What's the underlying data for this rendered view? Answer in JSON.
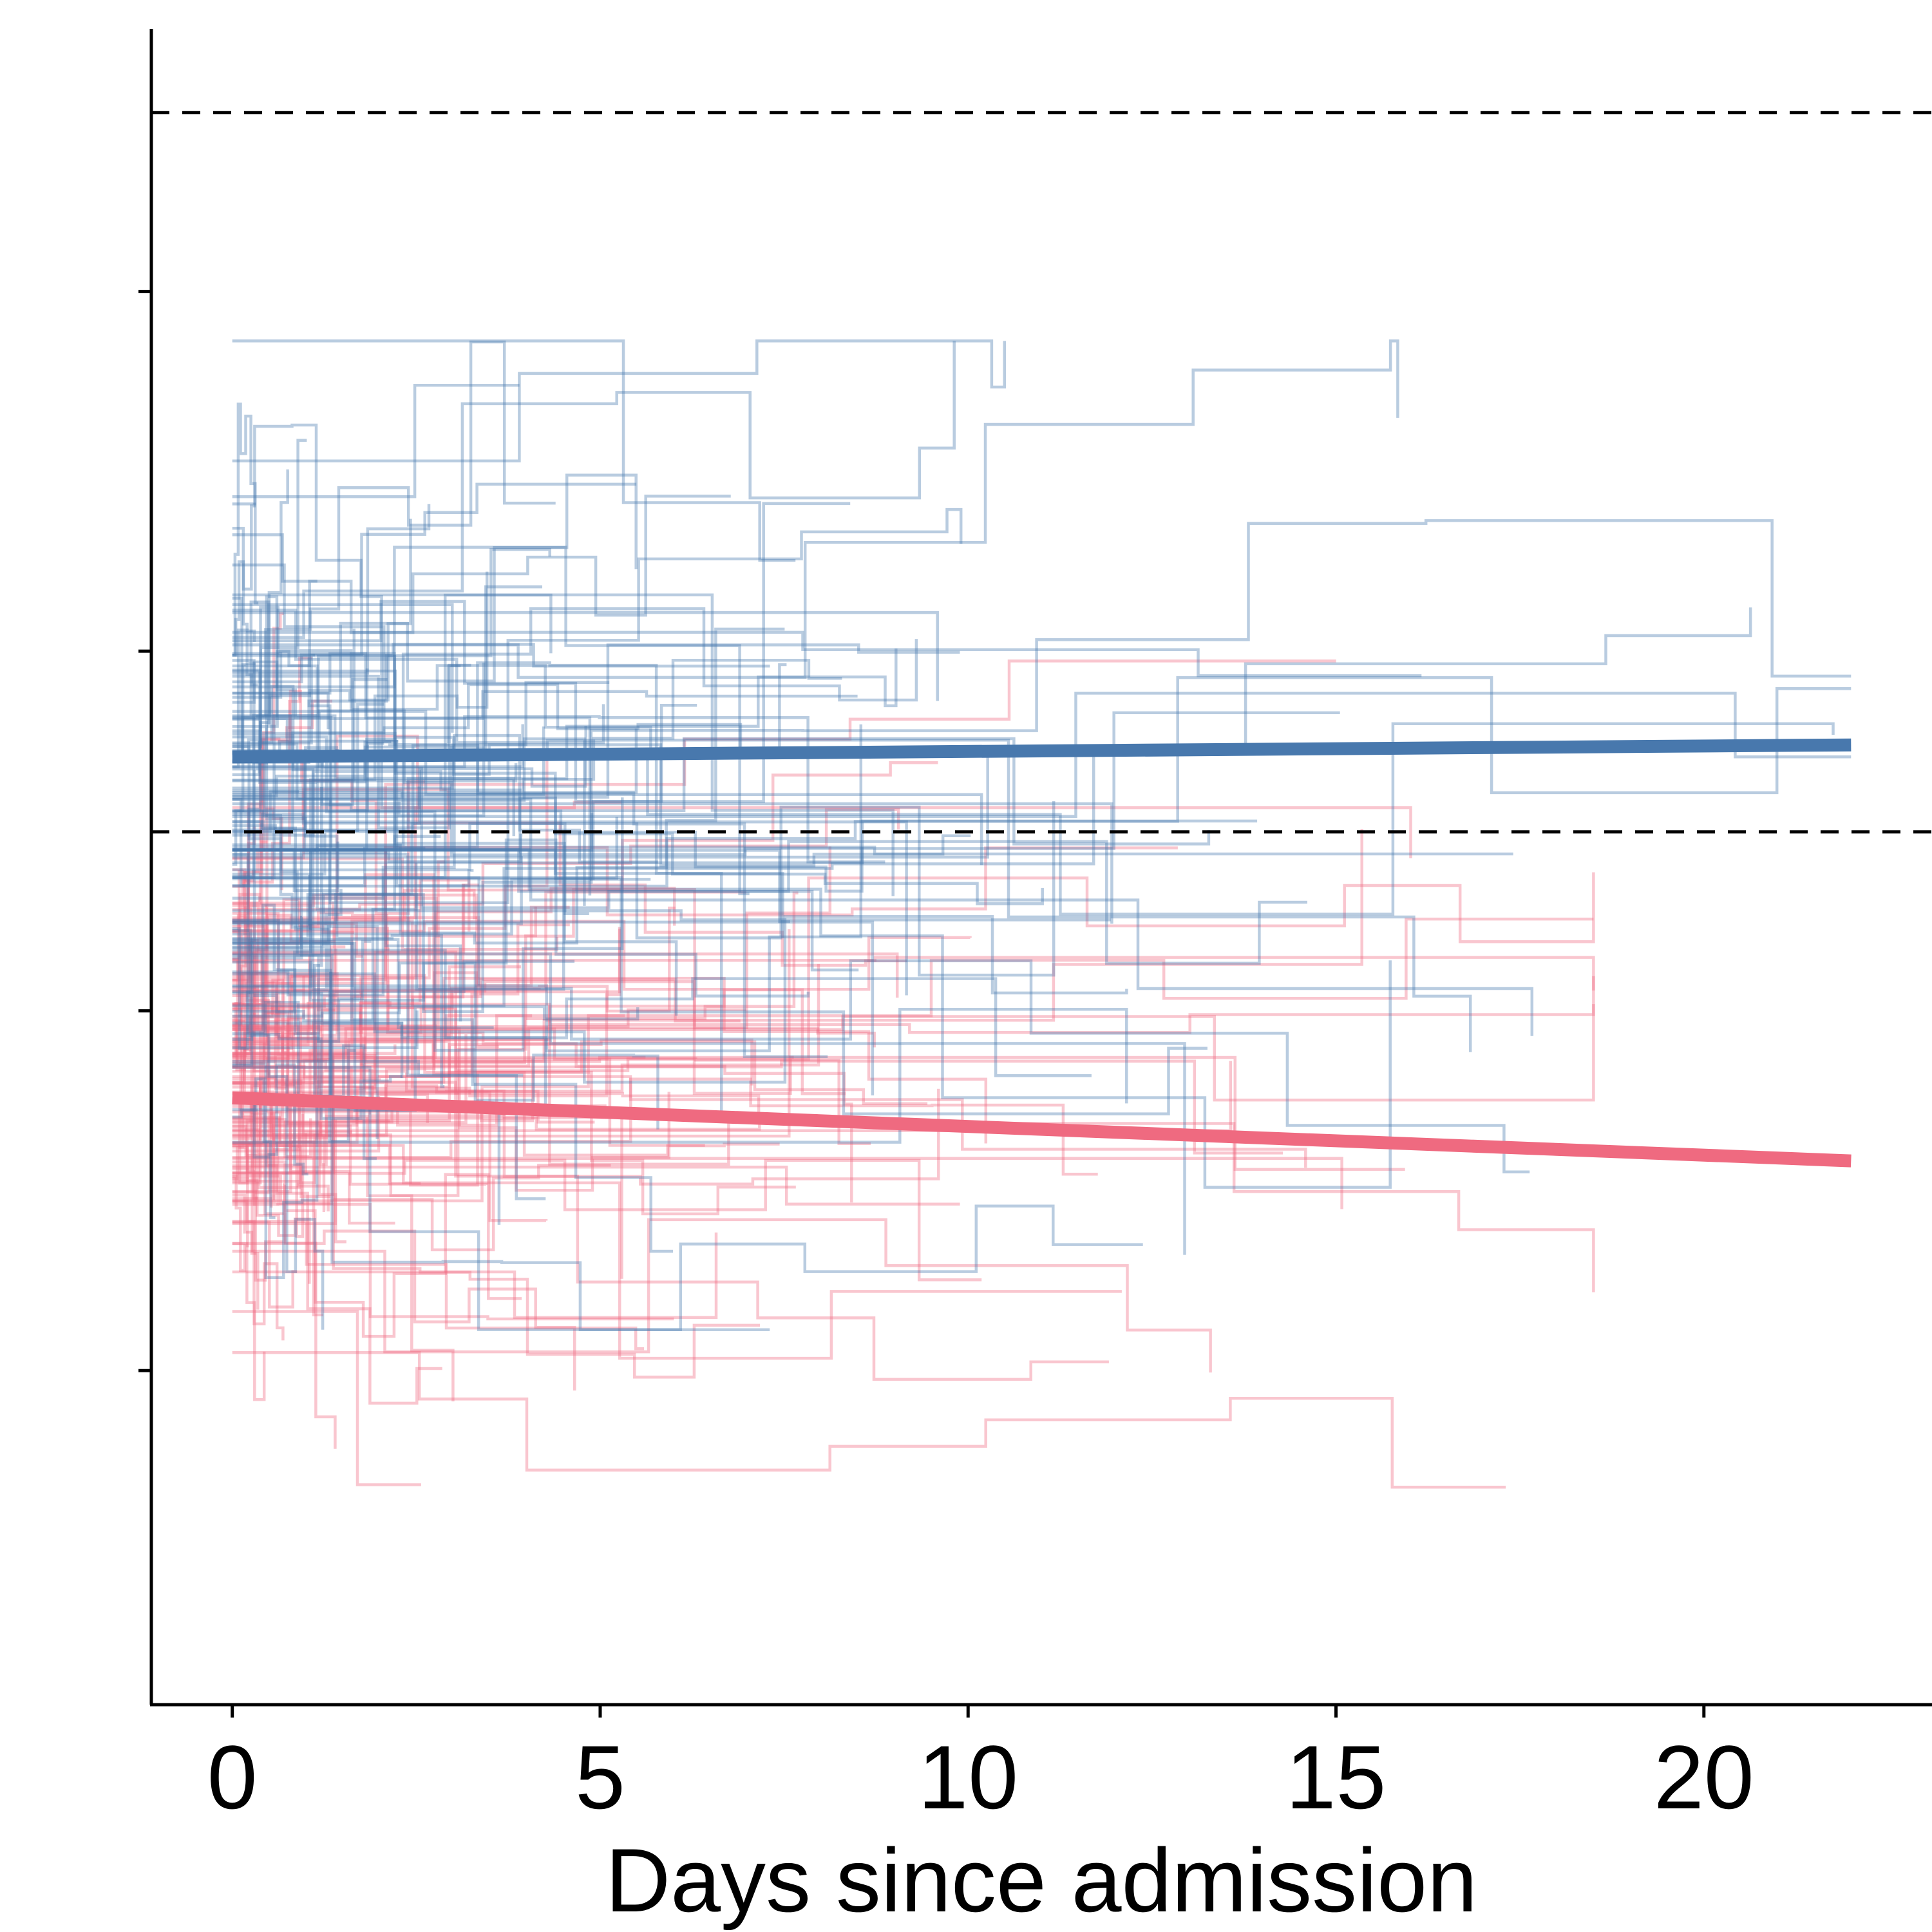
{
  "chart_data": {
    "type": "line",
    "xlabel": "Days since admission",
    "ylabel": "",
    "title": "",
    "xlim": [
      -1.1,
      23.1
    ],
    "ylim": [
      0,
      1
    ],
    "x_ticks": [
      0,
      5,
      10,
      15,
      20
    ],
    "x_tick_labels": [
      "0",
      "5",
      "10",
      "15",
      "20"
    ],
    "y_ticks": [
      0.196,
      0.407,
      0.618,
      0.829
    ],
    "y_tick_labels": [
      "",
      "",
      "",
      ""
    ],
    "reference_lines_y": [
      0.512,
      0.934
    ],
    "colors": {
      "blue": "#4878ad",
      "red": "#ef6a80"
    },
    "series": [
      {
        "group": "blue",
        "kind": "trend",
        "x": [
          0,
          22
        ],
        "y": [
          0.556,
          0.563
        ]
      },
      {
        "group": "red",
        "kind": "trend",
        "x": [
          0,
          22
        ],
        "y": [
          0.356,
          0.319
        ]
      }
    ],
    "individual_trajectories": {
      "blue": {
        "count": 150,
        "y_center": 0.525,
        "y_spread": 0.16,
        "y_min": 0.22,
        "y_max": 0.8,
        "max_days": 22
      },
      "red": {
        "count": 150,
        "y_center": 0.38,
        "y_spread": 0.12,
        "y_min": 0.05,
        "y_max": 0.64,
        "max_days": 18.5
      }
    }
  }
}
